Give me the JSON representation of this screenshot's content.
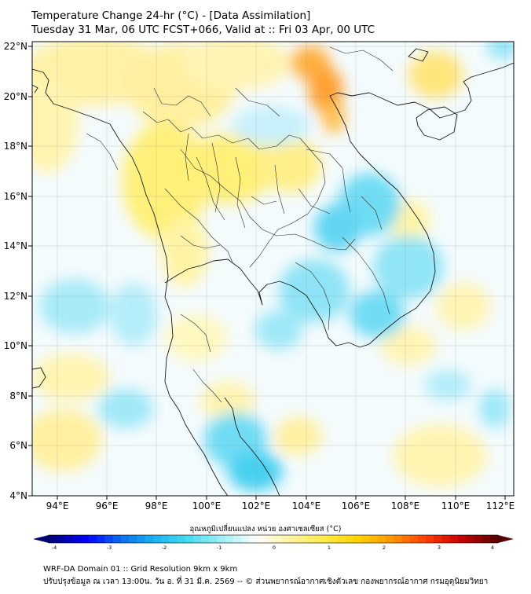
{
  "header": {
    "title": "Temperature Change 24-hr (°C) - [Data Assimilation]",
    "subtitle": "Tuesday 31 Mar, 06 UTC FCST+066, Valid at :: Fri 03 Apr, 00 UTC"
  },
  "map": {
    "lat_labels": [
      "4°N",
      "6°N",
      "8°N",
      "10°N",
      "12°N",
      "14°N",
      "16°N",
      "18°N",
      "20°N",
      "22°N"
    ],
    "lon_labels": [
      "94°E",
      "96°E",
      "98°E",
      "100°E",
      "102°E",
      "104°E",
      "106°E",
      "108°E",
      "110°E",
      "112°E"
    ],
    "lat_range": [
      4,
      22.2
    ],
    "lon_range": [
      93,
      112.5
    ]
  },
  "colorbar": {
    "label": "อุณหภูมิเปลี่ยนแปลง หน่วย องศาเซลเซียส (°C)",
    "ticks": [
      "-4",
      "-3",
      "-2",
      "-1",
      "0",
      "1",
      "2",
      "3",
      "4"
    ],
    "colors": [
      "#000080",
      "#0000ff",
      "#0a6cf0",
      "#19b4f0",
      "#46dcf0",
      "#a0f0f5",
      "#ffffff",
      "#fff5a0",
      "#ffeb46",
      "#ffd200",
      "#ff9600",
      "#ff3c00",
      "#c80000",
      "#640000"
    ]
  },
  "footer": {
    "line1": "WRF-DA Domain 01 :: Grid Resolution 9km x 9km",
    "line2": "ปรับปรุงข้อมูล ณ เวลา 13:00น. วัน อ. ที่ 31 มี.ค. 2569 -- © ส่วนพยากรณ์อากาศเชิงตัวเลข กองพยากรณ์อากาศ กรมอุตุนิยมวิทยา"
  }
}
